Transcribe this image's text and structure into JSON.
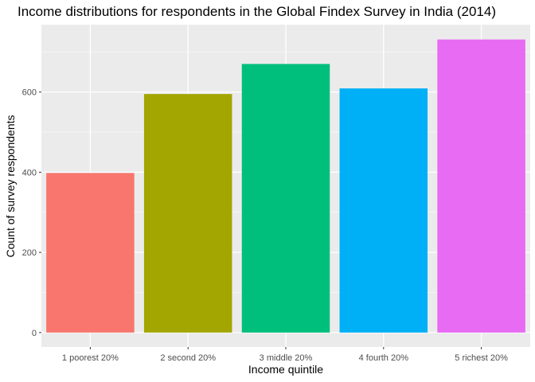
{
  "chart_data": {
    "type": "bar",
    "title": "Income distributions for respondents in the Global Findex Survey in India (2014)",
    "xlabel": "Income quintile",
    "ylabel": "Count of survey respondents",
    "categories": [
      "1 poorest 20%",
      "2 second 20%",
      "3 middle 20%",
      "4 fourth 20%",
      "5 richest 20%"
    ],
    "values": [
      398,
      595,
      670,
      609,
      731
    ],
    "colors": [
      "#F8766D",
      "#A3A500",
      "#00BF7D",
      "#00B0F6",
      "#E76BF3"
    ],
    "yticks": [
      0,
      200,
      400,
      600
    ],
    "ylim": [
      -36,
      768
    ],
    "grid": true,
    "legend": "none",
    "panel_background": "#EBEBEB",
    "grid_color": "#FFFFFF"
  }
}
